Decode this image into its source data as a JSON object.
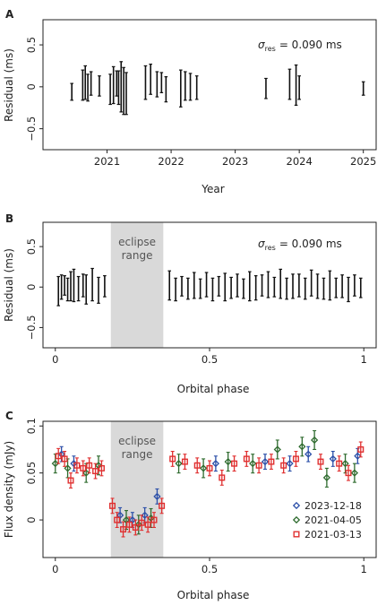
{
  "chart_data": [
    {
      "panel": "A",
      "type": "errorbar",
      "xlabel": "Year",
      "ylabel": "Residual (ms)",
      "xlim": [
        2020.0,
        2025.2
      ],
      "ylim": [
        -0.75,
        0.8
      ],
      "xticks": [
        "2021",
        "2022",
        "2023",
        "2024",
        "2025"
      ],
      "xtick_values": [
        2021,
        2022,
        2023,
        2024,
        2025
      ],
      "yticks": [
        "−0.5",
        "0",
        "0.5"
      ],
      "ytick_values": [
        -0.5,
        0,
        0.5
      ],
      "annotation_symbol": "σ",
      "annotation_sub": "res",
      "annotation_value": "= 0.090 ms",
      "points": [
        {
          "x": 2020.45,
          "y": -0.06,
          "e": 0.1
        },
        {
          "x": 2020.62,
          "y": 0.02,
          "e": 0.18
        },
        {
          "x": 2020.66,
          "y": 0.05,
          "e": 0.2
        },
        {
          "x": 2020.7,
          "y": -0.01,
          "e": 0.16
        },
        {
          "x": 2020.75,
          "y": 0.04,
          "e": 0.14
        },
        {
          "x": 2020.88,
          "y": 0.01,
          "e": 0.12
        },
        {
          "x": 2021.05,
          "y": -0.03,
          "e": 0.18
        },
        {
          "x": 2021.1,
          "y": 0.02,
          "e": 0.22
        },
        {
          "x": 2021.15,
          "y": 0.04,
          "e": 0.15
        },
        {
          "x": 2021.18,
          "y": -0.01,
          "e": 0.2
        },
        {
          "x": 2021.22,
          "y": 0.0,
          "e": 0.3
        },
        {
          "x": 2021.26,
          "y": -0.05,
          "e": 0.28
        },
        {
          "x": 2021.3,
          "y": -0.08,
          "e": 0.25
        },
        {
          "x": 2021.6,
          "y": 0.05,
          "e": 0.2
        },
        {
          "x": 2021.68,
          "y": 0.09,
          "e": 0.18
        },
        {
          "x": 2021.78,
          "y": 0.03,
          "e": 0.15
        },
        {
          "x": 2021.85,
          "y": 0.05,
          "e": 0.12
        },
        {
          "x": 2021.92,
          "y": -0.03,
          "e": 0.15
        },
        {
          "x": 2022.15,
          "y": -0.02,
          "e": 0.22
        },
        {
          "x": 2022.22,
          "y": 0.01,
          "e": 0.17
        },
        {
          "x": 2022.3,
          "y": 0.0,
          "e": 0.16
        },
        {
          "x": 2022.4,
          "y": -0.01,
          "e": 0.14
        },
        {
          "x": 2023.48,
          "y": -0.02,
          "e": 0.12
        },
        {
          "x": 2023.85,
          "y": 0.03,
          "e": 0.18
        },
        {
          "x": 2023.95,
          "y": 0.02,
          "e": 0.24
        },
        {
          "x": 2024.0,
          "y": -0.01,
          "e": 0.14
        },
        {
          "x": 2025.0,
          "y": -0.02,
          "e": 0.08
        }
      ]
    },
    {
      "panel": "B",
      "type": "errorbar",
      "xlabel": "Orbital phase",
      "ylabel": "Residual (ms)",
      "xlim": [
        -0.04,
        1.04
      ],
      "ylim": [
        -0.75,
        0.8
      ],
      "xticks": [
        "0",
        "0.5",
        "1"
      ],
      "xtick_values": [
        0,
        0.5,
        1
      ],
      "yticks": [
        "−0.5",
        "0",
        "0.5"
      ],
      "ytick_values": [
        -0.5,
        0,
        0.5
      ],
      "eclipse_range": [
        0.18,
        0.35
      ],
      "eclipse_label_line1": "eclipse",
      "eclipse_label_line2": "range",
      "annotation_symbol": "σ",
      "annotation_sub": "res",
      "annotation_value": "= 0.090 ms",
      "points": [
        {
          "x": 0.01,
          "y": -0.05,
          "e": 0.18
        },
        {
          "x": 0.02,
          "y": 0.0,
          "e": 0.15
        },
        {
          "x": 0.03,
          "y": 0.02,
          "e": 0.12
        },
        {
          "x": 0.04,
          "y": -0.03,
          "e": 0.14
        },
        {
          "x": 0.05,
          "y": 0.01,
          "e": 0.18
        },
        {
          "x": 0.06,
          "y": 0.02,
          "e": 0.2
        },
        {
          "x": 0.075,
          "y": -0.02,
          "e": 0.15
        },
        {
          "x": 0.09,
          "y": 0.02,
          "e": 0.14
        },
        {
          "x": 0.1,
          "y": -0.03,
          "e": 0.18
        },
        {
          "x": 0.12,
          "y": 0.03,
          "e": 0.2
        },
        {
          "x": 0.14,
          "y": -0.04,
          "e": 0.16
        },
        {
          "x": 0.16,
          "y": 0.01,
          "e": 0.13
        },
        {
          "x": 0.37,
          "y": 0.02,
          "e": 0.18
        },
        {
          "x": 0.39,
          "y": -0.03,
          "e": 0.14
        },
        {
          "x": 0.41,
          "y": 0.01,
          "e": 0.12
        },
        {
          "x": 0.43,
          "y": -0.02,
          "e": 0.13
        },
        {
          "x": 0.45,
          "y": 0.02,
          "e": 0.16
        },
        {
          "x": 0.47,
          "y": -0.02,
          "e": 0.12
        },
        {
          "x": 0.49,
          "y": 0.03,
          "e": 0.15
        },
        {
          "x": 0.51,
          "y": -0.03,
          "e": 0.14
        },
        {
          "x": 0.53,
          "y": 0.01,
          "e": 0.12
        },
        {
          "x": 0.55,
          "y": 0.0,
          "e": 0.17
        },
        {
          "x": 0.57,
          "y": -0.01,
          "e": 0.13
        },
        {
          "x": 0.59,
          "y": 0.02,
          "e": 0.14
        },
        {
          "x": 0.61,
          "y": -0.02,
          "e": 0.12
        },
        {
          "x": 0.63,
          "y": 0.01,
          "e": 0.18
        },
        {
          "x": 0.65,
          "y": -0.01,
          "e": 0.15
        },
        {
          "x": 0.67,
          "y": 0.02,
          "e": 0.13
        },
        {
          "x": 0.69,
          "y": 0.03,
          "e": 0.16
        },
        {
          "x": 0.71,
          "y": 0.0,
          "e": 0.12
        },
        {
          "x": 0.73,
          "y": 0.04,
          "e": 0.18
        },
        {
          "x": 0.75,
          "y": -0.02,
          "e": 0.13
        },
        {
          "x": 0.77,
          "y": 0.01,
          "e": 0.15
        },
        {
          "x": 0.79,
          "y": 0.02,
          "e": 0.14
        },
        {
          "x": 0.81,
          "y": -0.02,
          "e": 0.13
        },
        {
          "x": 0.83,
          "y": 0.05,
          "e": 0.16
        },
        {
          "x": 0.85,
          "y": 0.01,
          "e": 0.15
        },
        {
          "x": 0.87,
          "y": -0.02,
          "e": 0.13
        },
        {
          "x": 0.89,
          "y": 0.02,
          "e": 0.18
        },
        {
          "x": 0.91,
          "y": -0.01,
          "e": 0.12
        },
        {
          "x": 0.93,
          "y": 0.01,
          "e": 0.14
        },
        {
          "x": 0.95,
          "y": -0.03,
          "e": 0.15
        },
        {
          "x": 0.97,
          "y": 0.02,
          "e": 0.13
        },
        {
          "x": 0.99,
          "y": -0.01,
          "e": 0.12
        }
      ]
    },
    {
      "panel": "C",
      "type": "errorbar",
      "xlabel": "Orbital phase",
      "ylabel": "Flux density (mJy)",
      "xlim": [
        -0.04,
        1.04
      ],
      "ylim": [
        -0.04,
        0.105
      ],
      "xticks": [
        "0",
        "0.5",
        "1"
      ],
      "xtick_values": [
        0,
        0.5,
        1
      ],
      "yticks": [
        "0",
        "0.05",
        "0.1"
      ],
      "ytick_values": [
        0,
        0.05,
        0.1
      ],
      "eclipse_range": [
        0.18,
        0.35
      ],
      "eclipse_label_line1": "eclipse",
      "eclipse_label_line2": "range",
      "legend_position": "lower-right",
      "series": [
        {
          "name": "2023-12-18",
          "color": "#2b4fa8",
          "marker": "diamond",
          "points": [
            {
              "x": 0.02,
              "y": 0.07,
              "e": 0.008
            },
            {
              "x": 0.06,
              "y": 0.06,
              "e": 0.008
            },
            {
              "x": 0.21,
              "y": 0.005,
              "e": 0.008
            },
            {
              "x": 0.25,
              "y": 0.0,
              "e": 0.008
            },
            {
              "x": 0.29,
              "y": 0.005,
              "e": 0.008
            },
            {
              "x": 0.33,
              "y": 0.025,
              "e": 0.008
            },
            {
              "x": 0.52,
              "y": 0.06,
              "e": 0.008
            },
            {
              "x": 0.68,
              "y": 0.062,
              "e": 0.008
            },
            {
              "x": 0.76,
              "y": 0.06,
              "e": 0.008
            },
            {
              "x": 0.82,
              "y": 0.07,
              "e": 0.008
            },
            {
              "x": 0.9,
              "y": 0.065,
              "e": 0.008
            },
            {
              "x": 0.98,
              "y": 0.068,
              "e": 0.008
            }
          ]
        },
        {
          "name": "2021-04-05",
          "color": "#2e6b2e",
          "marker": "diamond",
          "points": [
            {
              "x": 0.0,
              "y": 0.06,
              "e": 0.01
            },
            {
              "x": 0.04,
              "y": 0.055,
              "e": 0.01
            },
            {
              "x": 0.1,
              "y": 0.05,
              "e": 0.01
            },
            {
              "x": 0.14,
              "y": 0.058,
              "e": 0.01
            },
            {
              "x": 0.23,
              "y": 0.0,
              "e": 0.01
            },
            {
              "x": 0.27,
              "y": -0.005,
              "e": 0.01
            },
            {
              "x": 0.31,
              "y": 0.002,
              "e": 0.01
            },
            {
              "x": 0.4,
              "y": 0.06,
              "e": 0.01
            },
            {
              "x": 0.48,
              "y": 0.055,
              "e": 0.01
            },
            {
              "x": 0.56,
              "y": 0.062,
              "e": 0.01
            },
            {
              "x": 0.64,
              "y": 0.06,
              "e": 0.01
            },
            {
              "x": 0.72,
              "y": 0.075,
              "e": 0.01
            },
            {
              "x": 0.8,
              "y": 0.078,
              "e": 0.01
            },
            {
              "x": 0.84,
              "y": 0.085,
              "e": 0.01
            },
            {
              "x": 0.88,
              "y": 0.045,
              "e": 0.01
            },
            {
              "x": 0.94,
              "y": 0.06,
              "e": 0.01
            },
            {
              "x": 0.97,
              "y": 0.05,
              "e": 0.01
            }
          ]
        },
        {
          "name": "2021-03-13",
          "color": "#e03030",
          "marker": "square",
          "points": [
            {
              "x": 0.01,
              "y": 0.068,
              "e": 0.008
            },
            {
              "x": 0.03,
              "y": 0.065,
              "e": 0.008
            },
            {
              "x": 0.05,
              "y": 0.042,
              "e": 0.008
            },
            {
              "x": 0.07,
              "y": 0.058,
              "e": 0.008
            },
            {
              "x": 0.09,
              "y": 0.055,
              "e": 0.008
            },
            {
              "x": 0.11,
              "y": 0.058,
              "e": 0.008
            },
            {
              "x": 0.13,
              "y": 0.052,
              "e": 0.008
            },
            {
              "x": 0.15,
              "y": 0.055,
              "e": 0.008
            },
            {
              "x": 0.185,
              "y": 0.015,
              "e": 0.008
            },
            {
              "x": 0.2,
              "y": 0.0,
              "e": 0.008
            },
            {
              "x": 0.22,
              "y": -0.01,
              "e": 0.008
            },
            {
              "x": 0.24,
              "y": -0.005,
              "e": 0.008
            },
            {
              "x": 0.26,
              "y": -0.008,
              "e": 0.008
            },
            {
              "x": 0.28,
              "y": -0.003,
              "e": 0.008
            },
            {
              "x": 0.3,
              "y": -0.005,
              "e": 0.008
            },
            {
              "x": 0.32,
              "y": 0.0,
              "e": 0.008
            },
            {
              "x": 0.345,
              "y": 0.015,
              "e": 0.008
            },
            {
              "x": 0.38,
              "y": 0.065,
              "e": 0.008
            },
            {
              "x": 0.42,
              "y": 0.062,
              "e": 0.008
            },
            {
              "x": 0.46,
              "y": 0.058,
              "e": 0.008
            },
            {
              "x": 0.5,
              "y": 0.055,
              "e": 0.008
            },
            {
              "x": 0.54,
              "y": 0.045,
              "e": 0.008
            },
            {
              "x": 0.58,
              "y": 0.06,
              "e": 0.008
            },
            {
              "x": 0.62,
              "y": 0.065,
              "e": 0.008
            },
            {
              "x": 0.66,
              "y": 0.058,
              "e": 0.008
            },
            {
              "x": 0.7,
              "y": 0.062,
              "e": 0.008
            },
            {
              "x": 0.74,
              "y": 0.058,
              "e": 0.008
            },
            {
              "x": 0.78,
              "y": 0.065,
              "e": 0.008
            },
            {
              "x": 0.86,
              "y": 0.062,
              "e": 0.008
            },
            {
              "x": 0.92,
              "y": 0.06,
              "e": 0.008
            },
            {
              "x": 0.95,
              "y": 0.05,
              "e": 0.008
            },
            {
              "x": 0.99,
              "y": 0.075,
              "e": 0.008
            }
          ]
        }
      ]
    }
  ]
}
